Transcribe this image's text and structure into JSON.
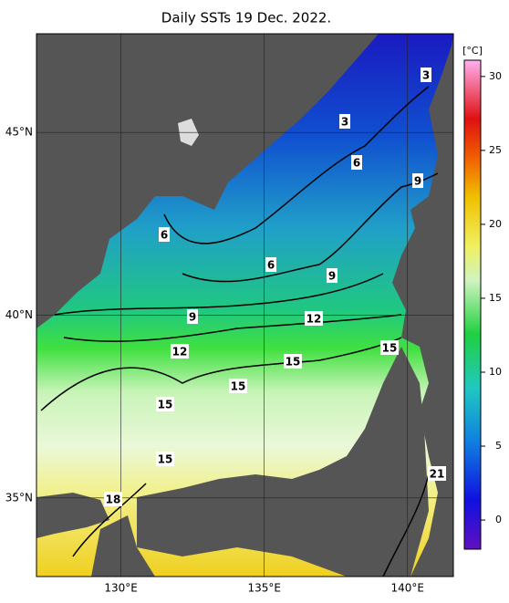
{
  "title": "Daily SSTs 19 Dec. 2022.",
  "map": {
    "xlim": [
      127.05,
      141.6
    ],
    "ylim": [
      32.85,
      47.7
    ],
    "xticks": [
      {
        "value": 130,
        "label": "130°E"
      },
      {
        "value": 135,
        "label": "135°E"
      },
      {
        "value": 140,
        "label": "140°E"
      }
    ],
    "yticks": [
      {
        "value": 35,
        "label": "35°N"
      },
      {
        "value": 40,
        "label": "40°N"
      },
      {
        "value": 45,
        "label": "45°N"
      }
    ]
  },
  "colorbar": {
    "unit": "[°C]",
    "lim": [
      -1.97,
      31.1
    ],
    "ticks": [
      0,
      5,
      10,
      15,
      20,
      25,
      30
    ]
  },
  "contour_labels": [
    3,
    3,
    6,
    6,
    6,
    9,
    9,
    9,
    12,
    12,
    15,
    15,
    15,
    15,
    15,
    18,
    21
  ]
}
